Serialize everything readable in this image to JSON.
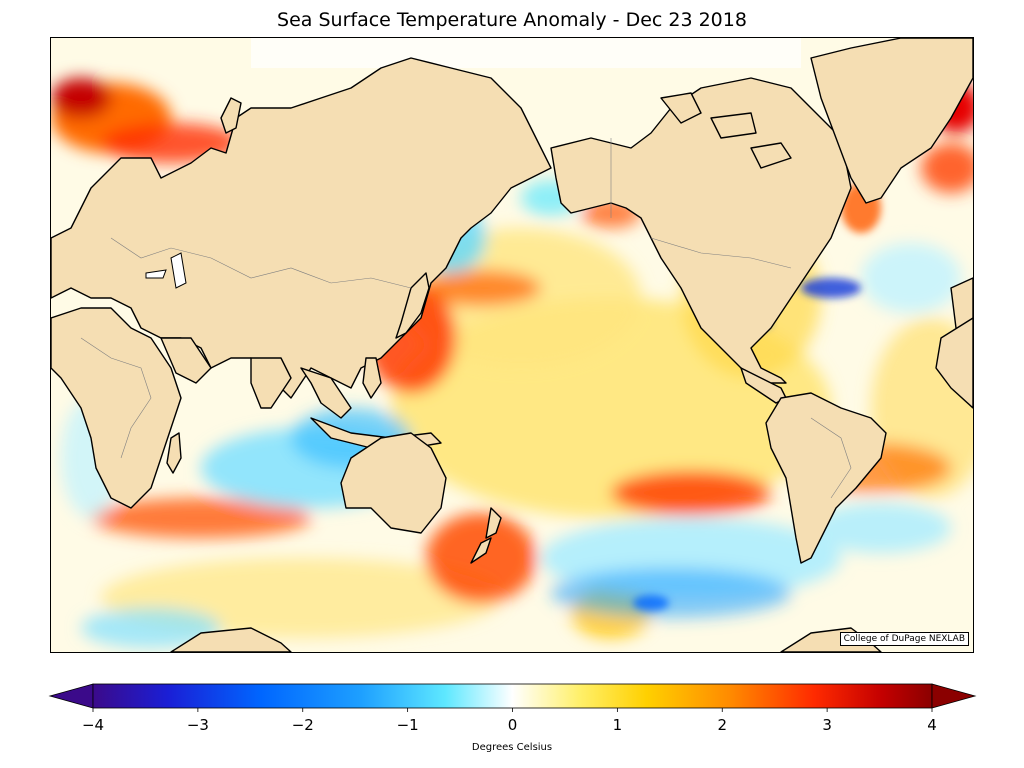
{
  "map": {
    "title": "Sea Surface Temperature Anomaly - Dec 23 2018",
    "credit": "College of DuPage NEXLAB",
    "projection": "mercator, Pacific-centered",
    "land_color": "#f5deb3",
    "coastline_color": "#000000",
    "border_color": "#808080"
  },
  "colorbar": {
    "label": "Degrees Celsius",
    "min": -4,
    "max": 4,
    "ticks": [
      "−4",
      "−3",
      "−2",
      "−1",
      "0",
      "1",
      "2",
      "3",
      "4"
    ],
    "extend": "both",
    "colors": [
      "#3b0a8a",
      "#1a1fd6",
      "#0066ff",
      "#1ea0ff",
      "#5ee8ff",
      "#ffffff",
      "#fff06a",
      "#ffd000",
      "#ff8a00",
      "#ff2a00",
      "#c40000",
      "#8b0000"
    ]
  }
}
